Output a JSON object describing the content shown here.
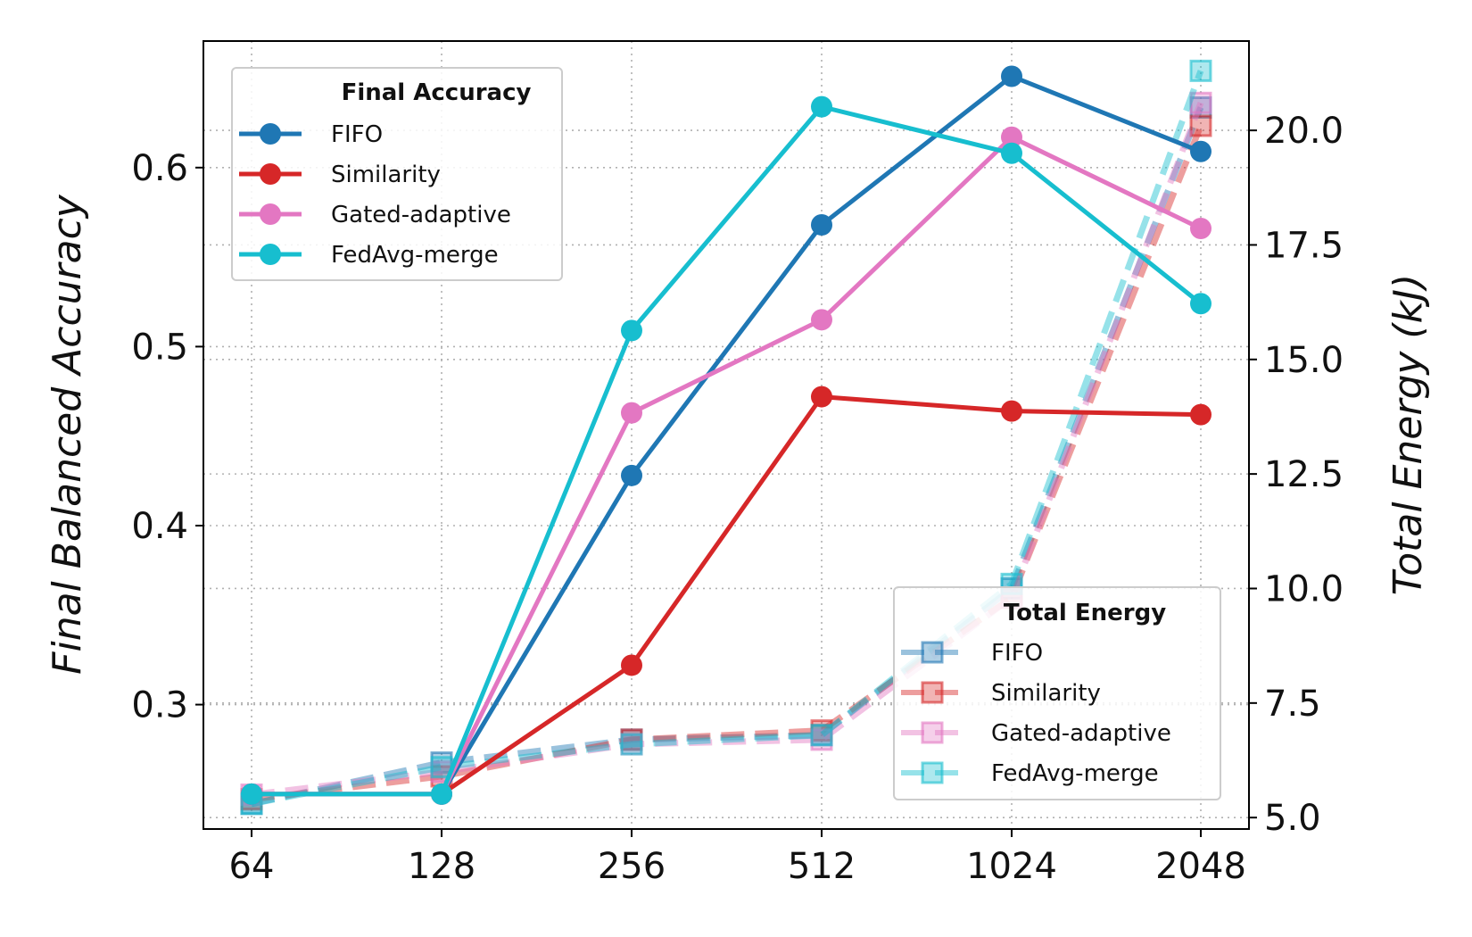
{
  "chart_data": {
    "type": "line",
    "x": [
      "64",
      "128",
      "256",
      "512",
      "1024",
      "2048"
    ],
    "xlabel": "",
    "ylabel_left": "Final Balanced Accuracy",
    "ylabel_right": "Total Energy (kJ)",
    "ylim_left": [
      0.2305,
      0.6707
    ],
    "ylim_right": [
      4.75,
      21.95
    ],
    "yticks_left": [
      "0.3",
      "0.4",
      "0.5",
      "0.6"
    ],
    "yticks_right": [
      "5.0",
      "7.5",
      "10.0",
      "12.5",
      "15.0",
      "17.5",
      "20.0"
    ],
    "grid": true,
    "accuracy_legend": {
      "title": "Final Accuracy",
      "placement": "top-left"
    },
    "energy_legend": {
      "title": "Total Energy",
      "placement": "bottom-right"
    },
    "accuracy_series": [
      {
        "name": "FIFO",
        "color": "#1f77b4",
        "values": [
          0.25,
          0.25,
          0.428,
          0.568,
          0.651,
          0.609
        ]
      },
      {
        "name": "Similarity",
        "color": "#d62728",
        "values": [
          0.25,
          0.25,
          0.322,
          0.472,
          0.464,
          0.462
        ]
      },
      {
        "name": "Gated-adaptive",
        "color": "#e377c2",
        "values": [
          0.25,
          0.25,
          0.463,
          0.515,
          0.617,
          0.566
        ]
      },
      {
        "name": "FedAvg-merge",
        "color": "#17becf",
        "values": [
          0.25,
          0.25,
          0.509,
          0.634,
          0.608,
          0.524
        ]
      }
    ],
    "energy_series": [
      {
        "name": "FIFO",
        "color": "#1f77b4",
        "values": [
          5.3,
          6.2,
          6.7,
          6.8,
          10.0,
          20.5
        ]
      },
      {
        "name": "Similarity",
        "color": "#d62728",
        "values": [
          5.4,
          5.9,
          6.7,
          6.9,
          9.8,
          20.1
        ]
      },
      {
        "name": "Gated-adaptive",
        "color": "#e377c2",
        "values": [
          5.5,
          6.0,
          6.6,
          6.7,
          9.8,
          20.6
        ]
      },
      {
        "name": "FedAvg-merge",
        "color": "#17becf",
        "values": [
          5.3,
          6.1,
          6.6,
          6.8,
          10.1,
          21.3
        ]
      }
    ]
  }
}
